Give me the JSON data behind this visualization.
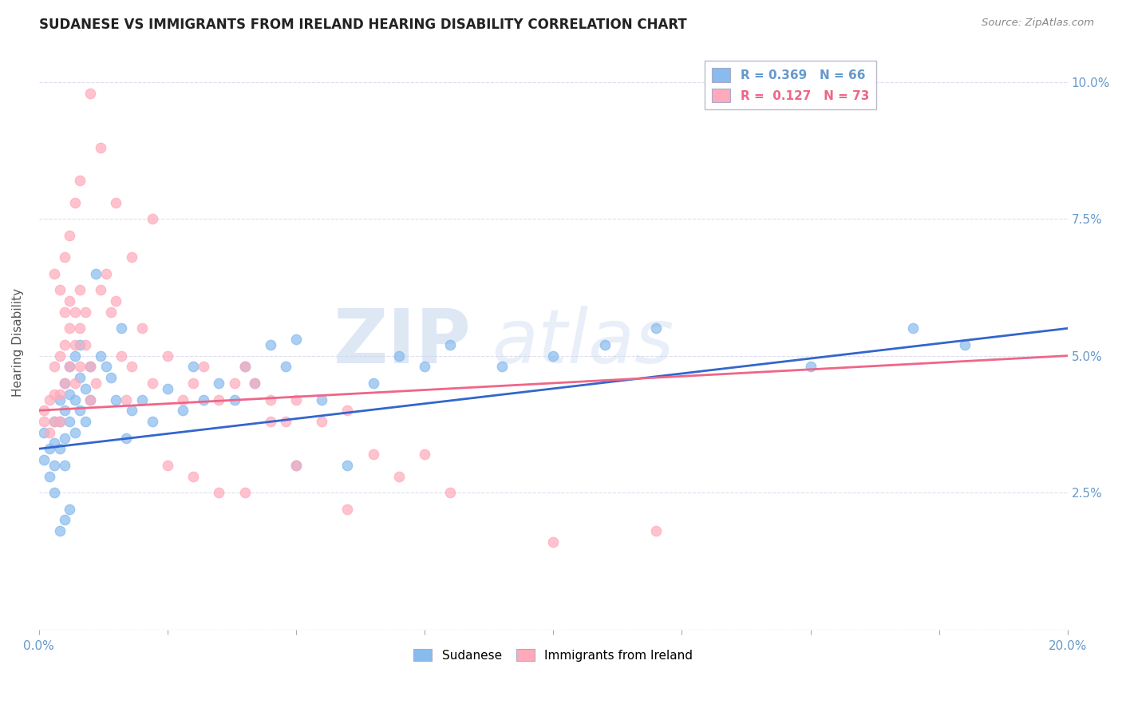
{
  "title": "SUDANESE VS IMMIGRANTS FROM IRELAND HEARING DISABILITY CORRELATION CHART",
  "source": "Source: ZipAtlas.com",
  "ylabel": "Hearing Disability",
  "xmin": 0.0,
  "xmax": 0.2,
  "ymin": 0.0,
  "ymax": 0.105,
  "yticks": [
    0.0,
    0.025,
    0.05,
    0.075,
    0.1
  ],
  "ytick_labels": [
    "",
    "2.5%",
    "5.0%",
    "7.5%",
    "10.0%"
  ],
  "xticks": [
    0.0,
    0.025,
    0.05,
    0.075,
    0.1,
    0.125,
    0.15,
    0.175,
    0.2
  ],
  "xtick_labels": [
    "0.0%",
    "",
    "",
    "",
    "",
    "",
    "",
    "",
    "20.0%"
  ],
  "blue_R": 0.369,
  "blue_N": 66,
  "pink_R": 0.127,
  "pink_N": 73,
  "blue_color": "#88BBEE",
  "pink_color": "#FFAABB",
  "blue_line_color": "#3366CC",
  "pink_line_color": "#EE6688",
  "title_color": "#222222",
  "axis_color": "#6699CC",
  "grid_color": "#DDDDEE",
  "blue_x": [
    0.001,
    0.001,
    0.002,
    0.002,
    0.003,
    0.003,
    0.003,
    0.004,
    0.004,
    0.004,
    0.005,
    0.005,
    0.005,
    0.005,
    0.006,
    0.006,
    0.006,
    0.007,
    0.007,
    0.007,
    0.008,
    0.008,
    0.008,
    0.009,
    0.009,
    0.01,
    0.01,
    0.011,
    0.012,
    0.013,
    0.014,
    0.015,
    0.016,
    0.017,
    0.018,
    0.02,
    0.022,
    0.025,
    0.028,
    0.03,
    0.032,
    0.035,
    0.038,
    0.04,
    0.042,
    0.045,
    0.048,
    0.05,
    0.055,
    0.06,
    0.065,
    0.07,
    0.075,
    0.08,
    0.09,
    0.1,
    0.11,
    0.12,
    0.15,
    0.17,
    0.003,
    0.004,
    0.005,
    0.006,
    0.18,
    0.05
  ],
  "blue_y": [
    0.031,
    0.036,
    0.033,
    0.028,
    0.034,
    0.038,
    0.03,
    0.033,
    0.038,
    0.042,
    0.03,
    0.035,
    0.04,
    0.045,
    0.038,
    0.043,
    0.048,
    0.036,
    0.042,
    0.05,
    0.04,
    0.046,
    0.052,
    0.038,
    0.044,
    0.042,
    0.048,
    0.065,
    0.05,
    0.048,
    0.046,
    0.042,
    0.055,
    0.035,
    0.04,
    0.042,
    0.038,
    0.044,
    0.04,
    0.048,
    0.042,
    0.045,
    0.042,
    0.048,
    0.045,
    0.052,
    0.048,
    0.03,
    0.042,
    0.03,
    0.045,
    0.05,
    0.048,
    0.052,
    0.048,
    0.05,
    0.052,
    0.055,
    0.048,
    0.055,
    0.025,
    0.018,
    0.02,
    0.022,
    0.052,
    0.053
  ],
  "pink_x": [
    0.001,
    0.001,
    0.002,
    0.002,
    0.003,
    0.003,
    0.003,
    0.004,
    0.004,
    0.004,
    0.005,
    0.005,
    0.005,
    0.006,
    0.006,
    0.006,
    0.007,
    0.007,
    0.007,
    0.008,
    0.008,
    0.008,
    0.009,
    0.009,
    0.01,
    0.01,
    0.011,
    0.012,
    0.013,
    0.014,
    0.015,
    0.016,
    0.017,
    0.018,
    0.02,
    0.022,
    0.025,
    0.028,
    0.03,
    0.032,
    0.035,
    0.038,
    0.04,
    0.042,
    0.045,
    0.048,
    0.05,
    0.055,
    0.06,
    0.065,
    0.07,
    0.075,
    0.08,
    0.003,
    0.004,
    0.005,
    0.006,
    0.007,
    0.008,
    0.01,
    0.012,
    0.015,
    0.018,
    0.022,
    0.025,
    0.03,
    0.035,
    0.04,
    0.1,
    0.12,
    0.045,
    0.05,
    0.06
  ],
  "pink_y": [
    0.04,
    0.038,
    0.036,
    0.042,
    0.038,
    0.043,
    0.048,
    0.038,
    0.043,
    0.05,
    0.045,
    0.052,
    0.058,
    0.048,
    0.055,
    0.06,
    0.045,
    0.052,
    0.058,
    0.048,
    0.055,
    0.062,
    0.052,
    0.058,
    0.042,
    0.048,
    0.045,
    0.062,
    0.065,
    0.058,
    0.06,
    0.05,
    0.042,
    0.048,
    0.055,
    0.045,
    0.05,
    0.042,
    0.045,
    0.048,
    0.042,
    0.045,
    0.048,
    0.045,
    0.042,
    0.038,
    0.042,
    0.038,
    0.04,
    0.032,
    0.028,
    0.032,
    0.025,
    0.065,
    0.062,
    0.068,
    0.072,
    0.078,
    0.082,
    0.098,
    0.088,
    0.078,
    0.068,
    0.075,
    0.03,
    0.028,
    0.025,
    0.025,
    0.016,
    0.018,
    0.038,
    0.03,
    0.022
  ]
}
